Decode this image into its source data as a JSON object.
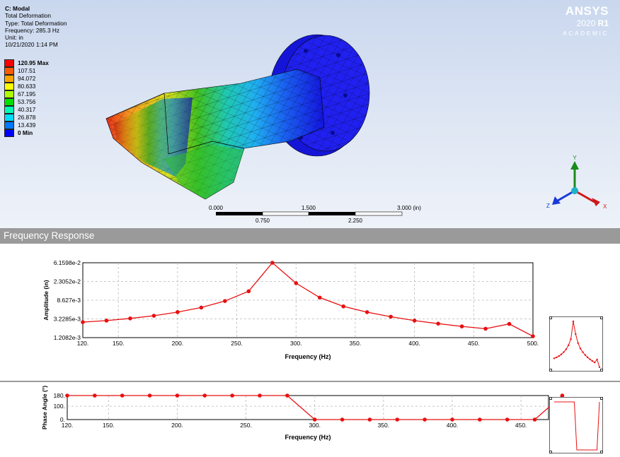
{
  "viewport": {
    "info": {
      "title": "C: Modal",
      "lines": [
        "Total Deformation",
        "Type: Total Deformation",
        "Frequency: 285.3 Hz",
        "Unit: in",
        "10/21/2020 1:14 PM"
      ]
    },
    "legend": {
      "items": [
        {
          "label": "120.95 Max",
          "color": "#ff0000",
          "bold": true
        },
        {
          "label": "107.51",
          "color": "#ff5a00",
          "bold": false
        },
        {
          "label": "94.072",
          "color": "#ffa500",
          "bold": false
        },
        {
          "label": "80.633",
          "color": "#ffff00",
          "bold": false
        },
        {
          "label": "67.195",
          "color": "#adff00",
          "bold": false
        },
        {
          "label": "53.756",
          "color": "#00e000",
          "bold": false
        },
        {
          "label": "40.317",
          "color": "#00ffb4",
          "bold": false
        },
        {
          "label": "26.878",
          "color": "#00dcff",
          "bold": false
        },
        {
          "label": "13.439",
          "color": "#0078ff",
          "bold": false
        },
        {
          "label": "0 Min",
          "color": "#0000ff",
          "bold": true
        }
      ]
    },
    "brand": {
      "name": "ANSYS",
      "version": "2020",
      "release": "R1",
      "edition": "ACADEMIC"
    },
    "scale_bar": {
      "top_labels": [
        "0.000",
        "1.500",
        "3.000 (in)"
      ],
      "bottom_labels": [
        "0.750",
        "2.250"
      ]
    },
    "triad": {
      "x": "X",
      "y": "Y",
      "z": "Z"
    }
  },
  "frequency_response": {
    "header": "Frequency Response",
    "amplitude_chart": {
      "type": "line",
      "ylabel": "Amplitude (in)",
      "xlabel": "Frequency (Hz)",
      "log_y": true,
      "xlim": [
        120,
        500
      ],
      "ylim": [
        0.0012082,
        0.061598
      ],
      "x_ticks": [
        "120.",
        "150.",
        "200.",
        "250.",
        "300.",
        "350.",
        "400.",
        "450.",
        "500."
      ],
      "x_tick_values": [
        120,
        150,
        200,
        250,
        300,
        350,
        400,
        450,
        500
      ],
      "y_ticks": [
        "6.1598e-2",
        "2.3052e-2",
        "8.627e-3",
        "3.2285e-3",
        "1.2082e-3"
      ],
      "y_tick_values": [
        0.061598,
        0.023052,
        0.008627,
        0.0032285,
        0.0012082
      ],
      "series_color": "#e81010",
      "x": [
        120,
        140,
        160,
        180,
        200,
        220,
        240,
        260,
        280,
        300,
        320,
        340,
        360,
        380,
        400,
        420,
        440,
        460,
        480,
        500
      ],
      "values": [
        0.00273,
        0.00296,
        0.00331,
        0.00381,
        0.00462,
        0.00586,
        0.00826,
        0.0138,
        0.0616,
        0.0211,
        0.0099,
        0.00623,
        0.0046,
        0.00362,
        0.00296,
        0.00252,
        0.00218,
        0.00193,
        0.00248,
        0.0013
      ]
    },
    "phase_chart": {
      "type": "line",
      "ylabel": "Phase Angle (°)",
      "xlabel": "Frequency (Hz)",
      "xlim": [
        120,
        470
      ],
      "ylim": [
        0,
        180
      ],
      "x_ticks": [
        "120.",
        "150.",
        "200.",
        "250.",
        "300.",
        "350.",
        "400.",
        "450."
      ],
      "x_tick_values": [
        120,
        150,
        200,
        250,
        300,
        350,
        400,
        450
      ],
      "y_ticks": [
        "180.",
        "100.",
        "0."
      ],
      "y_tick_values": [
        180,
        100,
        0
      ],
      "series_color": "#e81010",
      "x": [
        120,
        140,
        160,
        180,
        200,
        220,
        240,
        260,
        280,
        300,
        320,
        340,
        360,
        380,
        400,
        420,
        440,
        460,
        480
      ],
      "values": [
        180,
        180,
        180,
        180,
        180,
        180,
        180,
        180,
        180,
        0,
        0,
        0,
        0,
        0,
        0,
        0,
        0,
        0,
        180
      ]
    }
  }
}
